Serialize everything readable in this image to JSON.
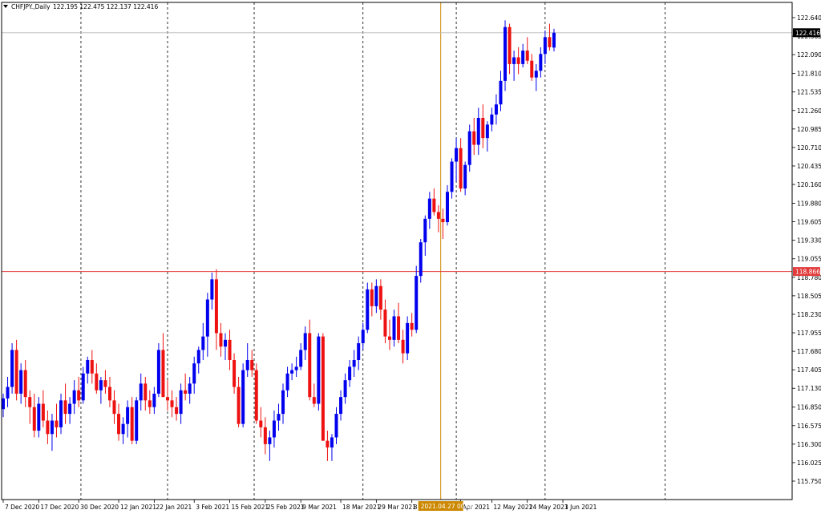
{
  "header": {
    "symbol_label": "CHFJPY.,Daily",
    "ohlc": "122.195 122.475 122.137 122.416"
  },
  "colors": {
    "bull": "#0000ee",
    "bear": "#ee1111",
    "hline": "#e23c3c",
    "vline": "#cc8800",
    "grid": "#000000"
  },
  "chart_data": {
    "type": "candlestick",
    "ylim": [
      115.75,
      122.77
    ],
    "yticks": [
      "122.640",
      "122.365",
      "122.090",
      "121.810",
      "121.535",
      "121.260",
      "120.985",
      "120.710",
      "120.435",
      "120.160",
      "119.880",
      "119.605",
      "119.330",
      "119.055",
      "118.780",
      "118.505",
      "118.230",
      "117.955",
      "117.680",
      "117.405",
      "117.130",
      "116.850",
      "116.575",
      "116.300",
      "116.025",
      "115.750"
    ],
    "xticks": [
      {
        "label": "7 Dec 2020",
        "i": 0
      },
      {
        "label": "17 Dec 2020",
        "i": 8
      },
      {
        "label": "30 Dec 2020",
        "i": 17
      },
      {
        "label": "12 Jan 2021",
        "i": 26
      },
      {
        "label": "22 Jan 2021",
        "i": 34
      },
      {
        "label": "3 Feb 2021",
        "i": 43
      },
      {
        "label": "15 Feb 2021",
        "i": 51
      },
      {
        "label": "25 Feb 2021",
        "i": 59
      },
      {
        "label": "9 Mar 2021",
        "i": 67
      },
      {
        "label": "18 Mar 2021",
        "i": 76
      },
      {
        "label": "29 Mar 2021",
        "i": 84
      },
      {
        "label": "8 Apr 2021",
        "i": 92
      },
      {
        "label": "Apr 2021",
        "i": 103
      },
      {
        "label": "12 May 2021",
        "i": 110
      },
      {
        "label": "24 May 2021",
        "i": 118
      },
      {
        "label": "3 Jun 2021",
        "i": 126
      }
    ],
    "current_price": {
      "value": "122.416",
      "level": 122.416
    },
    "hline": {
      "value": "118.866",
      "level": 118.866
    },
    "crosshair_label": "2021.04.27 00:00",
    "crosshair_index": 98.5,
    "separators": [
      17.5,
      37,
      56.5,
      81,
      102,
      122,
      149
    ],
    "ohlc": [
      [
        116.82,
        117.05,
        116.7,
        116.98
      ],
      [
        116.98,
        117.3,
        116.85,
        117.15
      ],
      [
        117.15,
        117.8,
        117.05,
        117.7
      ],
      [
        117.7,
        117.85,
        116.95,
        117.05
      ],
      [
        117.05,
        117.5,
        116.9,
        117.4
      ],
      [
        117.4,
        117.55,
        116.85,
        117.0
      ],
      [
        117.0,
        117.1,
        116.6,
        116.85
      ],
      [
        116.85,
        117.05,
        116.4,
        116.5
      ],
      [
        116.5,
        117.0,
        116.4,
        116.9
      ],
      [
        116.9,
        117.1,
        116.55,
        116.65
      ],
      [
        116.65,
        116.8,
        116.3,
        116.45
      ],
      [
        116.45,
        116.75,
        116.2,
        116.65
      ],
      [
        116.65,
        116.9,
        116.4,
        116.55
      ],
      [
        116.55,
        117.05,
        116.45,
        116.95
      ],
      [
        116.95,
        117.2,
        116.6,
        116.75
      ],
      [
        116.75,
        117.0,
        116.6,
        116.9
      ],
      [
        116.9,
        117.25,
        116.75,
        117.1
      ],
      [
        117.1,
        117.3,
        116.85,
        116.95
      ],
      [
        116.95,
        117.45,
        116.9,
        117.35
      ],
      [
        117.35,
        117.6,
        117.2,
        117.55
      ],
      [
        117.55,
        117.7,
        117.2,
        117.35
      ],
      [
        117.35,
        117.5,
        117.05,
        117.1
      ],
      [
        117.1,
        117.3,
        116.9,
        117.25
      ],
      [
        117.25,
        117.4,
        117.05,
        117.15
      ],
      [
        117.15,
        117.3,
        116.85,
        116.95
      ],
      [
        116.95,
        117.1,
        116.6,
        116.75
      ],
      [
        116.75,
        116.9,
        116.35,
        116.45
      ],
      [
        116.45,
        116.7,
        116.3,
        116.6
      ],
      [
        116.6,
        116.95,
        116.4,
        116.85
      ],
      [
        116.85,
        117.0,
        116.3,
        116.35
      ],
      [
        116.35,
        117.0,
        116.3,
        116.95
      ],
      [
        116.95,
        117.35,
        116.8,
        117.2
      ],
      [
        117.2,
        117.3,
        116.8,
        116.95
      ],
      [
        116.95,
        117.1,
        116.75,
        116.85
      ],
      [
        116.85,
        117.15,
        116.75,
        117.05
      ],
      [
        117.05,
        117.8,
        117.0,
        117.7
      ],
      [
        117.7,
        117.95,
        117.0,
        117.0
      ],
      [
        117.0,
        117.25,
        116.8,
        116.95
      ],
      [
        116.95,
        117.1,
        116.7,
        116.85
      ],
      [
        116.85,
        117.0,
        116.65,
        116.75
      ],
      [
        116.75,
        117.2,
        116.6,
        117.1
      ],
      [
        117.1,
        117.35,
        116.95,
        117.05
      ],
      [
        117.05,
        117.3,
        116.9,
        117.2
      ],
      [
        117.2,
        117.6,
        117.05,
        117.5
      ],
      [
        117.5,
        117.75,
        117.35,
        117.7
      ],
      [
        117.7,
        118.1,
        117.55,
        117.9
      ],
      [
        117.9,
        118.55,
        117.6,
        118.45
      ],
      [
        118.45,
        118.85,
        118.3,
        118.75
      ],
      [
        118.75,
        118.9,
        117.7,
        117.95
      ],
      [
        117.95,
        118.1,
        117.6,
        117.75
      ],
      [
        117.75,
        117.95,
        117.55,
        117.85
      ],
      [
        117.85,
        118.0,
        117.4,
        117.55
      ],
      [
        117.55,
        117.65,
        117.05,
        117.15
      ],
      [
        117.15,
        117.3,
        116.55,
        116.6
      ],
      [
        116.6,
        117.5,
        116.55,
        117.4
      ],
      [
        117.4,
        117.8,
        117.3,
        117.55
      ],
      [
        117.55,
        117.7,
        117.3,
        117.4
      ],
      [
        117.4,
        117.5,
        116.6,
        116.65
      ],
      [
        116.65,
        116.85,
        116.4,
        116.55
      ],
      [
        116.55,
        116.7,
        116.15,
        116.3
      ],
      [
        116.3,
        116.5,
        116.05,
        116.4
      ],
      [
        116.4,
        116.8,
        116.25,
        116.65
      ],
      [
        116.65,
        116.9,
        116.5,
        116.75
      ],
      [
        116.75,
        117.2,
        116.6,
        117.1
      ],
      [
        117.1,
        117.45,
        117.0,
        117.35
      ],
      [
        117.35,
        117.5,
        117.25,
        117.4
      ],
      [
        117.4,
        117.6,
        117.3,
        117.45
      ],
      [
        117.45,
        117.8,
        117.4,
        117.7
      ],
      [
        117.7,
        118.05,
        117.55,
        117.95
      ],
      [
        117.95,
        118.15,
        116.95,
        117.0
      ],
      [
        117.0,
        117.2,
        116.85,
        116.9
      ],
      [
        116.9,
        117.95,
        116.8,
        117.9
      ],
      [
        117.9,
        117.95,
        116.35,
        116.35
      ],
      [
        116.35,
        116.5,
        116.05,
        116.25
      ],
      [
        116.25,
        116.45,
        116.05,
        116.4
      ],
      [
        116.4,
        116.85,
        116.3,
        116.75
      ],
      [
        116.75,
        117.1,
        116.65,
        117.0
      ],
      [
        117.0,
        117.35,
        116.9,
        117.25
      ],
      [
        117.25,
        117.55,
        117.15,
        117.45
      ],
      [
        117.45,
        117.7,
        117.3,
        117.55
      ],
      [
        117.55,
        117.9,
        117.4,
        117.8
      ],
      [
        117.8,
        118.1,
        117.7,
        118.0
      ],
      [
        118.0,
        118.7,
        117.95,
        118.6
      ],
      [
        118.6,
        118.7,
        118.2,
        118.35
      ],
      [
        118.35,
        118.75,
        118.25,
        118.65
      ],
      [
        118.65,
        118.75,
        118.15,
        118.3
      ],
      [
        118.3,
        118.45,
        117.8,
        117.9
      ],
      [
        117.9,
        118.15,
        117.7,
        117.85
      ],
      [
        117.85,
        118.3,
        117.75,
        118.2
      ],
      [
        118.2,
        118.4,
        117.8,
        117.85
      ],
      [
        117.85,
        118.0,
        117.5,
        117.65
      ],
      [
        117.65,
        118.2,
        117.55,
        118.1
      ],
      [
        118.1,
        118.25,
        117.9,
        118.0
      ],
      [
        118.0,
        118.95,
        117.95,
        118.8
      ],
      [
        118.8,
        119.35,
        118.7,
        119.3
      ],
      [
        119.3,
        119.7,
        119.1,
        119.65
      ],
      [
        119.65,
        120.05,
        119.5,
        119.95
      ],
      [
        119.95,
        120.1,
        119.7,
        119.75
      ],
      [
        119.75,
        119.85,
        119.45,
        119.65
      ],
      [
        119.65,
        119.8,
        119.35,
        119.6
      ],
      [
        119.6,
        120.15,
        119.55,
        120.05
      ],
      [
        120.05,
        120.55,
        119.95,
        120.5
      ],
      [
        120.5,
        120.85,
        120.2,
        120.7
      ],
      [
        120.7,
        120.85,
        120.05,
        120.1
      ],
      [
        120.1,
        120.5,
        120.0,
        120.45
      ],
      [
        120.45,
        121.05,
        120.35,
        120.95
      ],
      [
        120.95,
        121.15,
        120.6,
        120.75
      ],
      [
        120.75,
        121.3,
        120.6,
        121.15
      ],
      [
        121.15,
        121.35,
        120.7,
        120.85
      ],
      [
        120.85,
        121.1,
        120.65,
        121.05
      ],
      [
        121.05,
        121.3,
        120.95,
        121.2
      ],
      [
        121.2,
        121.5,
        121.05,
        121.35
      ],
      [
        121.35,
        121.85,
        121.25,
        121.7
      ],
      [
        121.7,
        122.6,
        121.55,
        122.5
      ],
      [
        122.5,
        122.55,
        121.8,
        121.95
      ],
      [
        121.95,
        122.15,
        121.7,
        122.05
      ],
      [
        122.05,
        122.2,
        121.8,
        121.95
      ],
      [
        121.95,
        122.25,
        121.9,
        122.15
      ],
      [
        122.15,
        122.35,
        121.95,
        122.0
      ],
      [
        122.0,
        122.1,
        121.7,
        121.75
      ],
      [
        121.75,
        121.95,
        121.55,
        121.85
      ],
      [
        121.85,
        122.2,
        121.75,
        122.1
      ],
      [
        122.1,
        122.45,
        121.95,
        122.35
      ],
      [
        122.35,
        122.55,
        122.15,
        122.2
      ],
      [
        122.195,
        122.475,
        122.137,
        122.416
      ]
    ]
  }
}
